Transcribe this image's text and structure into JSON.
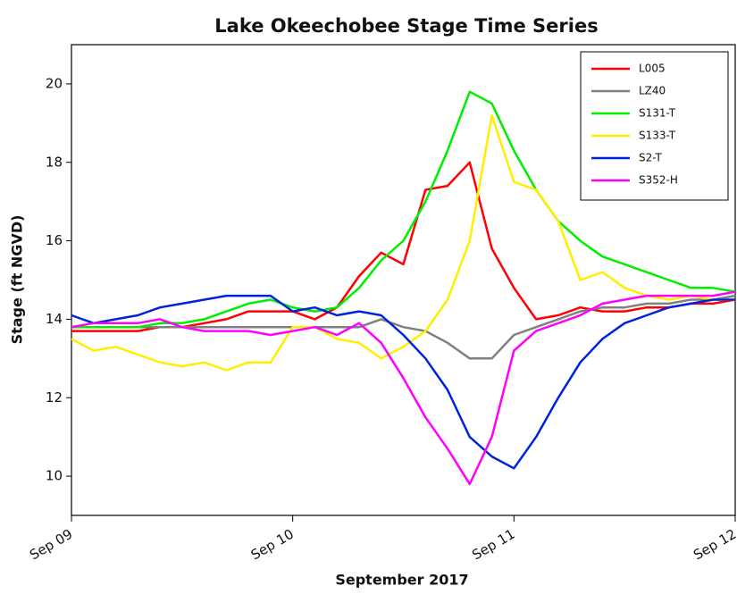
{
  "chart_data": {
    "type": "line",
    "title": "Lake Okeechobee Stage Time Series",
    "x_label": "September 2017",
    "y_label": "Stage (ft NGVD)",
    "x": [
      9.0,
      9.1,
      9.2,
      9.3,
      9.4,
      9.5,
      9.6,
      9.7,
      9.8,
      9.9,
      10.0,
      10.1,
      10.2,
      10.3,
      10.4,
      10.5,
      10.6,
      10.7,
      10.8,
      10.9,
      11.0,
      11.1,
      11.2,
      11.3,
      11.4,
      11.5,
      11.6,
      11.7,
      11.8,
      11.9,
      12.0
    ],
    "xlim": [
      9,
      12
    ],
    "xticks": [
      {
        "value": 9,
        "label": "Sep 09"
      },
      {
        "value": 10,
        "label": "Sep 10"
      },
      {
        "value": 11,
        "label": "Sep 11"
      },
      {
        "value": 12,
        "label": "Sep 12"
      }
    ],
    "ylim": [
      9,
      21
    ],
    "yticks": [
      10,
      12,
      14,
      16,
      18,
      20
    ],
    "legend": "upper right",
    "series": [
      {
        "name": "L005",
        "color": "#ff0000",
        "values": [
          13.7,
          13.7,
          13.7,
          13.7,
          13.8,
          13.8,
          13.9,
          14.0,
          14.2,
          14.2,
          14.2,
          14.0,
          14.3,
          15.1,
          15.7,
          15.4,
          17.3,
          17.4,
          18.0,
          15.8,
          14.8,
          14.0,
          14.1,
          14.3,
          14.2,
          14.2,
          14.3,
          14.3,
          14.4,
          14.4,
          14.5
        ]
      },
      {
        "name": "LZ40",
        "color": "#808080",
        "values": [
          13.8,
          13.8,
          13.8,
          13.8,
          13.8,
          13.8,
          13.8,
          13.8,
          13.8,
          13.8,
          13.8,
          13.8,
          13.8,
          13.8,
          14.0,
          13.8,
          13.7,
          13.4,
          13.0,
          13.0,
          13.6,
          13.8,
          14.0,
          14.2,
          14.3,
          14.3,
          14.4,
          14.4,
          14.5,
          14.5,
          14.6
        ]
      },
      {
        "name": "S131-T",
        "color": "#00ee00",
        "values": [
          13.8,
          13.8,
          13.8,
          13.8,
          13.9,
          13.9,
          14.0,
          14.2,
          14.4,
          14.5,
          14.3,
          14.2,
          14.3,
          14.8,
          15.5,
          16.0,
          17.0,
          18.3,
          19.8,
          19.5,
          18.3,
          17.3,
          16.5,
          16.0,
          15.6,
          15.4,
          15.2,
          15.0,
          14.8,
          14.8,
          14.7
        ]
      },
      {
        "name": "S133-T",
        "color": "#ffee00",
        "values": [
          13.5,
          13.2,
          13.3,
          13.1,
          12.9,
          12.8,
          12.9,
          12.7,
          12.9,
          12.9,
          13.8,
          13.8,
          13.5,
          13.4,
          13.0,
          13.3,
          13.7,
          14.5,
          16.0,
          19.2,
          17.5,
          17.3,
          16.5,
          15.0,
          15.2,
          14.8,
          14.6,
          14.5,
          14.6,
          14.5,
          14.5
        ]
      },
      {
        "name": "S2-T",
        "color": "#0022dd",
        "values": [
          14.1,
          13.9,
          14.0,
          14.1,
          14.3,
          14.4,
          14.5,
          14.6,
          14.6,
          14.6,
          14.2,
          14.3,
          14.1,
          14.2,
          14.1,
          13.6,
          13.0,
          12.2,
          11.0,
          10.5,
          10.2,
          11.0,
          12.0,
          12.9,
          13.5,
          13.9,
          14.1,
          14.3,
          14.4,
          14.5,
          14.5
        ]
      },
      {
        "name": "S352-H",
        "color": "#ff00ff",
        "values": [
          13.8,
          13.9,
          13.9,
          13.9,
          14.0,
          13.8,
          13.7,
          13.7,
          13.7,
          13.6,
          13.7,
          13.8,
          13.6,
          13.9,
          13.4,
          12.5,
          11.5,
          10.7,
          9.8,
          11.0,
          13.2,
          13.7,
          13.9,
          14.1,
          14.4,
          14.5,
          14.6,
          14.6,
          14.6,
          14.6,
          14.7
        ]
      }
    ]
  }
}
